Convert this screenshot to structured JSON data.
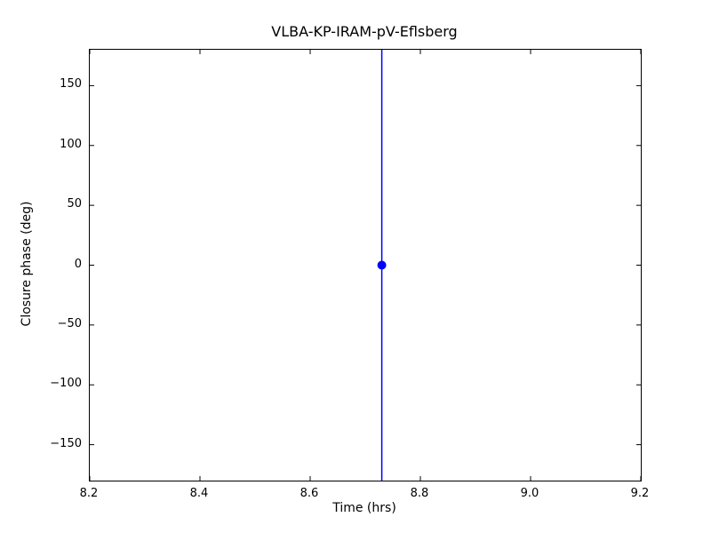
{
  "chart_data": {
    "type": "scatter",
    "title": "VLBA-KP-IRAM-pV-Eflsberg",
    "xlabel": "Time (hrs)",
    "ylabel": "Closure phase (deg)",
    "xlim": [
      8.2,
      9.2
    ],
    "ylim": [
      -180,
      180
    ],
    "xticks": [
      8.2,
      8.4,
      8.6,
      8.8,
      9.0,
      9.2
    ],
    "yticks": [
      -150,
      -100,
      -50,
      0,
      50,
      100,
      150
    ],
    "grid": false,
    "legend": null,
    "series": [
      {
        "name": "closure phase point",
        "marker": "circle",
        "color": "#0000ff",
        "points": [
          {
            "x": 8.73,
            "y": 0,
            "yerr_spans_plot": true
          }
        ]
      }
    ]
  },
  "colors": {
    "axes": "#000000",
    "background": "#ffffff",
    "data": "#0000ff"
  }
}
